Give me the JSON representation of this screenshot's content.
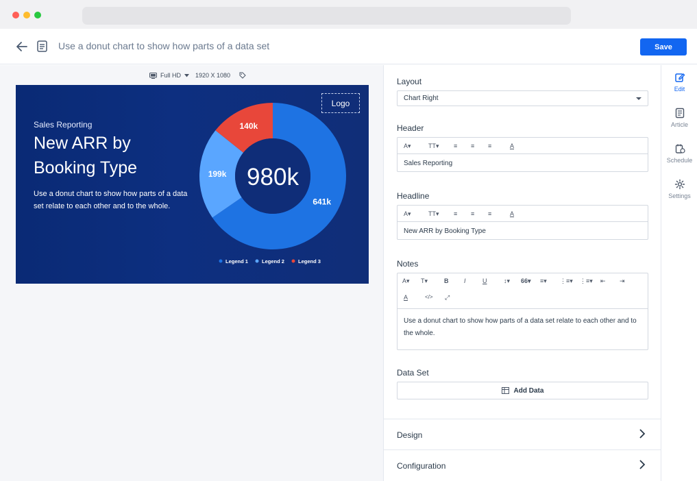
{
  "app": {
    "doc_title": "Use a donut chart to show how parts of a data set",
    "save_label": "Save"
  },
  "canvas": {
    "resolution_label": "Full HD",
    "resolution_dims": "1920 X 1080"
  },
  "slide": {
    "header": "Sales Reporting",
    "headline": "New ARR by Booking Type",
    "notes": "Use a donut chart to show how parts of a data set relate to each other and to the whole.",
    "logo": "Logo",
    "center_value": "980k",
    "colors": {
      "legend1": "#1e73e3",
      "legend2": "#5aa6ff",
      "legend3": "#e8473a",
      "hole": "#0f2d78"
    }
  },
  "chart_data": {
    "type": "pie",
    "center_label": "980k",
    "categories": [
      "Legend 1",
      "Legend 2",
      "Legend 3"
    ],
    "values": [
      641,
      199,
      140
    ],
    "labels": [
      "641k",
      "199k",
      "140k"
    ],
    "legend_placement": "bottom"
  },
  "settings": {
    "layout_label": "Layout",
    "layout_value": "Chart Right",
    "header_label": "Header",
    "header_value": "Sales Reporting",
    "headline_label": "Headline",
    "headline_value": "New ARR by Booking Type",
    "notes_label": "Notes",
    "notes_value": "Use a donut chart to show how parts of a data set relate to each other and to the whole.",
    "dataset_label": "Data Set",
    "add_data_label": "Add Data",
    "design_label": "Design",
    "configuration_label": "Configuration"
  },
  "toolbar_glyphs": {
    "font": "A",
    "size": "T",
    "bold": "B",
    "italic": "I",
    "underline": "U",
    "quote": "66",
    "color": "A",
    "code": "</>"
  },
  "rail": {
    "edit": "Edit",
    "article": "Article",
    "schedule": "Schedule",
    "settings": "Settings"
  }
}
